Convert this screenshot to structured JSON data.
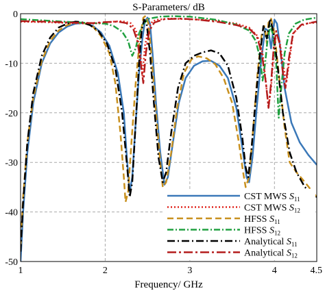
{
  "chart_data": {
    "type": "line",
    "title": "S-Parameters/ dB",
    "xlabel": "Frequency/ GHz",
    "ylabel": "",
    "xlim": [
      1,
      4.5
    ],
    "ylim": [
      -50,
      0
    ],
    "x_ticks": [
      "1",
      "2",
      "3",
      "4",
      "4.5"
    ],
    "y_ticks": [
      "0",
      "-10",
      "-20",
      "-30",
      "-40",
      "-50"
    ],
    "x_tick_values": [
      1,
      2,
      3,
      4,
      4.5
    ],
    "y_tick_values": [
      0,
      -10,
      -20,
      -30,
      -40,
      -50
    ],
    "grid": true,
    "legend_position": "bottom-right",
    "series": [
      {
        "name": "CST MWS S11",
        "legend": {
          "prefix": "CST MWS ",
          "sym": "S",
          "sub": "11"
        },
        "color": "#3a78b8",
        "dash": "solid",
        "width": 2.5,
        "points": [
          [
            1.0,
            -50
          ],
          [
            1.03,
            -40
          ],
          [
            1.08,
            -28
          ],
          [
            1.15,
            -18
          ],
          [
            1.25,
            -10
          ],
          [
            1.35,
            -6
          ],
          [
            1.45,
            -3.8
          ],
          [
            1.55,
            -2.6
          ],
          [
            1.65,
            -2.0
          ],
          [
            1.75,
            -1.9
          ],
          [
            1.85,
            -2.4
          ],
          [
            1.95,
            -3.8
          ],
          [
            2.05,
            -6.5
          ],
          [
            2.15,
            -12
          ],
          [
            2.22,
            -20
          ],
          [
            2.26,
            -30
          ],
          [
            2.29,
            -36
          ],
          [
            2.32,
            -33
          ],
          [
            2.36,
            -22
          ],
          [
            2.4,
            -12
          ],
          [
            2.44,
            -5
          ],
          [
            2.47,
            -1.5
          ],
          [
            2.5,
            -0.8
          ],
          [
            2.53,
            -2
          ],
          [
            2.56,
            -8
          ],
          [
            2.6,
            -18
          ],
          [
            2.65,
            -28
          ],
          [
            2.7,
            -34.5
          ],
          [
            2.74,
            -33
          ],
          [
            2.8,
            -26
          ],
          [
            2.87,
            -18
          ],
          [
            2.95,
            -13
          ],
          [
            3.05,
            -10.5
          ],
          [
            3.15,
            -9.6
          ],
          [
            3.25,
            -9.5
          ],
          [
            3.35,
            -10.5
          ],
          [
            3.45,
            -13
          ],
          [
            3.55,
            -19
          ],
          [
            3.62,
            -27
          ],
          [
            3.67,
            -33
          ],
          [
            3.7,
            -34
          ],
          [
            3.74,
            -29
          ],
          [
            3.79,
            -19
          ],
          [
            3.84,
            -10
          ],
          [
            3.89,
            -3
          ],
          [
            3.93,
            -3.5
          ],
          [
            3.96,
            -7
          ],
          [
            4.0,
            -1.2
          ],
          [
            4.03,
            -2
          ],
          [
            4.07,
            -7
          ],
          [
            4.12,
            -15
          ],
          [
            4.2,
            -22
          ],
          [
            4.3,
            -26
          ],
          [
            4.4,
            -28.5
          ],
          [
            4.5,
            -30.5
          ]
        ]
      },
      {
        "name": "CST MWS S12",
        "legend": {
          "prefix": "CST MWS ",
          "sym": "S",
          "sub": "12"
        },
        "color": "#e0241c",
        "dash": "2 3",
        "width": 2.5,
        "points": [
          [
            1.0,
            -1.6
          ],
          [
            1.3,
            -1.7
          ],
          [
            1.6,
            -1.9
          ],
          [
            1.85,
            -2.0
          ],
          [
            2.0,
            -1.8
          ],
          [
            2.1,
            -1.6
          ],
          [
            2.2,
            -1.5
          ],
          [
            2.3,
            -1.9
          ],
          [
            2.36,
            -3.2
          ],
          [
            2.41,
            -7
          ],
          [
            2.44,
            -12.5
          ],
          [
            2.47,
            -6.5
          ],
          [
            2.51,
            -3
          ],
          [
            2.56,
            -1.5
          ],
          [
            2.62,
            -1.2
          ],
          [
            2.75,
            -1.0
          ],
          [
            3.0,
            -1.1
          ],
          [
            3.3,
            -1.4
          ],
          [
            3.55,
            -2.0
          ],
          [
            3.7,
            -2.8
          ],
          [
            3.8,
            -4.5
          ],
          [
            3.86,
            -8
          ],
          [
            3.9,
            -14
          ],
          [
            3.93,
            -19
          ],
          [
            3.96,
            -15
          ],
          [
            3.99,
            -8
          ],
          [
            4.02,
            -4
          ],
          [
            4.06,
            -5.5
          ],
          [
            4.1,
            -10
          ],
          [
            4.14,
            -14
          ],
          [
            4.18,
            -9
          ],
          [
            4.22,
            -4
          ],
          [
            4.3,
            -2.5
          ],
          [
            4.4,
            -1.9
          ],
          [
            4.5,
            -1.8
          ]
        ]
      },
      {
        "name": "HFSS S11",
        "legend": {
          "prefix": "HFSS  ",
          "sym": "S",
          "sub": "11"
        },
        "color": "#c8901e",
        "dash": "9 5",
        "width": 2.5,
        "points": [
          [
            1.0,
            -47
          ],
          [
            1.03,
            -37
          ],
          [
            1.08,
            -26
          ],
          [
            1.15,
            -17
          ],
          [
            1.25,
            -9.5
          ],
          [
            1.35,
            -5.5
          ],
          [
            1.45,
            -3.4
          ],
          [
            1.55,
            -2.3
          ],
          [
            1.65,
            -1.8
          ],
          [
            1.75,
            -1.9
          ],
          [
            1.85,
            -2.5
          ],
          [
            1.95,
            -4.5
          ],
          [
            2.05,
            -8
          ],
          [
            2.12,
            -14
          ],
          [
            2.18,
            -24
          ],
          [
            2.22,
            -33
          ],
          [
            2.24,
            -38
          ],
          [
            2.27,
            -36
          ],
          [
            2.31,
            -26
          ],
          [
            2.36,
            -14
          ],
          [
            2.41,
            -5
          ],
          [
            2.45,
            -0.8
          ],
          [
            2.48,
            -0.4
          ],
          [
            2.51,
            -2
          ],
          [
            2.55,
            -9
          ],
          [
            2.6,
            -20
          ],
          [
            2.65,
            -30
          ],
          [
            2.68,
            -35
          ],
          [
            2.72,
            -34
          ],
          [
            2.78,
            -28
          ],
          [
            2.85,
            -19
          ],
          [
            2.93,
            -12
          ],
          [
            3.02,
            -9.2
          ],
          [
            3.1,
            -8.6
          ],
          [
            3.2,
            -9.0
          ],
          [
            3.3,
            -10.2
          ],
          [
            3.4,
            -13
          ],
          [
            3.5,
            -18
          ],
          [
            3.58,
            -26
          ],
          [
            3.63,
            -32
          ],
          [
            3.66,
            -35
          ],
          [
            3.7,
            -33
          ],
          [
            3.75,
            -23
          ],
          [
            3.8,
            -12
          ],
          [
            3.85,
            -4
          ],
          [
            3.88,
            -2.5
          ],
          [
            3.91,
            -6
          ],
          [
            3.93,
            -1.8
          ],
          [
            3.96,
            -1.0
          ],
          [
            4.0,
            -4
          ],
          [
            4.05,
            -12
          ],
          [
            4.12,
            -23
          ],
          [
            4.18,
            -30
          ],
          [
            4.26,
            -32
          ],
          [
            4.36,
            -34
          ],
          [
            4.5,
            -37
          ]
        ]
      },
      {
        "name": "HFSS S12",
        "legend": {
          "prefix": "HFSS  ",
          "sym": "S",
          "sub": "12"
        },
        "color": "#20a040",
        "dash": "9 3 2 3",
        "width": 2.5,
        "points": [
          [
            1.0,
            -1.1
          ],
          [
            1.3,
            -1.4
          ],
          [
            1.6,
            -1.7
          ],
          [
            1.85,
            -1.9
          ],
          [
            2.0,
            -2.0
          ],
          [
            2.1,
            -2.5
          ],
          [
            2.2,
            -3.6
          ],
          [
            2.27,
            -5.5
          ],
          [
            2.32,
            -8.5
          ],
          [
            2.36,
            -7
          ],
          [
            2.4,
            -4
          ],
          [
            2.45,
            -2
          ],
          [
            2.52,
            -1.0
          ],
          [
            2.65,
            -0.6
          ],
          [
            2.8,
            -0.5
          ],
          [
            3.0,
            -0.6
          ],
          [
            3.3,
            -1.2
          ],
          [
            3.55,
            -2.2
          ],
          [
            3.7,
            -3.4
          ],
          [
            3.78,
            -5.5
          ],
          [
            3.83,
            -9
          ],
          [
            3.86,
            -13.5
          ],
          [
            3.89,
            -10
          ],
          [
            3.92,
            -5
          ],
          [
            3.95,
            -2.5
          ],
          [
            3.98,
            -4
          ],
          [
            4.02,
            -10
          ],
          [
            4.05,
            -21
          ],
          [
            4.08,
            -15
          ],
          [
            4.12,
            -8
          ],
          [
            4.17,
            -4
          ],
          [
            4.25,
            -2
          ],
          [
            4.35,
            -1.2
          ],
          [
            4.5,
            -0.8
          ]
        ]
      },
      {
        "name": "Analytical S11",
        "legend": {
          "prefix": "Analytical ",
          "sym": "S",
          "sub": "11"
        },
        "color": "#000000",
        "dash": "11 4 2 4",
        "width": 2.5,
        "points": [
          [
            1.0,
            -48
          ],
          [
            1.03,
            -38
          ],
          [
            1.08,
            -26
          ],
          [
            1.15,
            -16
          ],
          [
            1.25,
            -8.5
          ],
          [
            1.35,
            -4.8
          ],
          [
            1.45,
            -2.8
          ],
          [
            1.55,
            -2.0
          ],
          [
            1.65,
            -1.6
          ],
          [
            1.72,
            -1.7
          ],
          [
            1.82,
            -2.3
          ],
          [
            1.92,
            -3.5
          ],
          [
            2.02,
            -6
          ],
          [
            2.12,
            -11
          ],
          [
            2.2,
            -20
          ],
          [
            2.26,
            -31
          ],
          [
            2.29,
            -37
          ],
          [
            2.32,
            -34
          ],
          [
            2.36,
            -22
          ],
          [
            2.4,
            -10
          ],
          [
            2.43,
            -3.5
          ],
          [
            2.46,
            -1.2
          ],
          [
            2.49,
            -2
          ],
          [
            2.53,
            -8
          ],
          [
            2.58,
            -19
          ],
          [
            2.63,
            -29
          ],
          [
            2.68,
            -34
          ],
          [
            2.72,
            -32
          ],
          [
            2.78,
            -24
          ],
          [
            2.86,
            -15
          ],
          [
            2.95,
            -10
          ],
          [
            3.05,
            -8.5
          ],
          [
            3.15,
            -7.8
          ],
          [
            3.25,
            -7.4
          ],
          [
            3.35,
            -8
          ],
          [
            3.45,
            -10.5
          ],
          [
            3.55,
            -17
          ],
          [
            3.62,
            -25
          ],
          [
            3.66,
            -31
          ],
          [
            3.69,
            -33
          ],
          [
            3.73,
            -27
          ],
          [
            3.78,
            -17
          ],
          [
            3.83,
            -8
          ],
          [
            3.87,
            -2.5
          ],
          [
            3.91,
            -5
          ],
          [
            3.95,
            -1.0
          ],
          [
            3.99,
            -4
          ],
          [
            4.04,
            -11
          ],
          [
            4.1,
            -20
          ],
          [
            4.18,
            -28
          ],
          [
            4.26,
            -32
          ],
          [
            4.36,
            -35
          ],
          [
            4.5,
            -37
          ]
        ]
      },
      {
        "name": "Analytical S12",
        "legend": {
          "prefix": "Analytical ",
          "sym": "S",
          "sub": "12"
        },
        "color": "#b41c1c",
        "dash": "13 4 3 4",
        "width": 2.5,
        "points": [
          [
            1.0,
            -1.5
          ],
          [
            1.3,
            -1.6
          ],
          [
            1.6,
            -1.8
          ],
          [
            1.85,
            -1.9
          ],
          [
            2.0,
            -1.7
          ],
          [
            2.15,
            -1.6
          ],
          [
            2.25,
            -1.9
          ],
          [
            2.33,
            -3.0
          ],
          [
            2.38,
            -5.5
          ],
          [
            2.42,
            -10
          ],
          [
            2.45,
            -14
          ],
          [
            2.48,
            -8
          ],
          [
            2.52,
            -3.5
          ],
          [
            2.58,
            -1.8
          ],
          [
            2.7,
            -1.1
          ],
          [
            2.9,
            -1.0
          ],
          [
            3.1,
            -1.2
          ],
          [
            3.35,
            -1.7
          ],
          [
            3.55,
            -2.3
          ],
          [
            3.7,
            -3.0
          ],
          [
            3.79,
            -4.5
          ],
          [
            3.85,
            -8
          ],
          [
            3.9,
            -14
          ],
          [
            3.93,
            -19
          ],
          [
            3.96,
            -14
          ],
          [
            3.99,
            -7
          ],
          [
            4.02,
            -3.5
          ],
          [
            4.06,
            -6
          ],
          [
            4.1,
            -12
          ],
          [
            4.13,
            -15
          ],
          [
            4.17,
            -9
          ],
          [
            4.22,
            -4
          ],
          [
            4.32,
            -2.2
          ],
          [
            4.5,
            -1.6
          ]
        ]
      }
    ]
  }
}
